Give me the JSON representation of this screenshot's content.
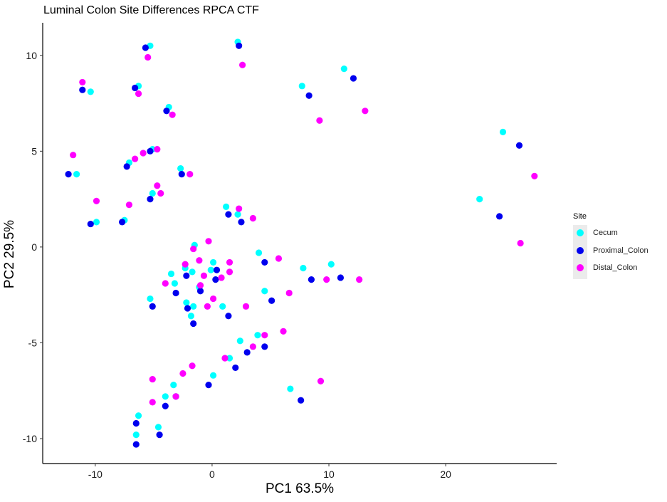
{
  "chart_data": {
    "type": "scatter",
    "title": "Luminal Colon Site Differences RPCA CTF",
    "xlabel": "PC1 63.5%",
    "ylabel": "PC2 29.5%",
    "xlim": [
      -14.5,
      29.5
    ],
    "ylim": [
      -11.3,
      11.7
    ],
    "xticks": [
      -10,
      0,
      10,
      20
    ],
    "yticks": [
      -10,
      -5,
      0,
      5,
      10
    ],
    "xtick_labels": [
      "-10",
      "0",
      "10",
      "20"
    ],
    "ytick_labels": [
      "-10",
      "-5",
      "0",
      "5",
      "10"
    ],
    "grid": false,
    "legend": {
      "title": "Site",
      "position": "right"
    },
    "series": [
      {
        "name": "Cecum",
        "color": "#00ffff",
        "points": [
          [
            -5.3,
            10.5
          ],
          [
            2.2,
            10.7
          ],
          [
            11.3,
            9.3
          ],
          [
            7.7,
            8.4
          ],
          [
            -10.4,
            8.1
          ],
          [
            -6.3,
            8.4
          ],
          [
            -3.7,
            7.3
          ],
          [
            24.9,
            6.0
          ],
          [
            -5.1,
            5.1
          ],
          [
            -7.1,
            4.4
          ],
          [
            -11.6,
            3.8
          ],
          [
            -2.7,
            4.1
          ],
          [
            -5.1,
            2.8
          ],
          [
            1.2,
            2.1
          ],
          [
            2.2,
            1.7
          ],
          [
            22.9,
            2.5
          ],
          [
            -7.5,
            1.4
          ],
          [
            -9.9,
            1.3
          ],
          [
            -1.5,
            0.1
          ],
          [
            0.1,
            -0.8
          ],
          [
            4.0,
            -0.3
          ],
          [
            10.2,
            -0.9
          ],
          [
            7.8,
            -1.1
          ],
          [
            -1.7,
            -1.3
          ],
          [
            -3.5,
            -1.4
          ],
          [
            -0.1,
            -1.2
          ],
          [
            -2.3,
            -1.1
          ],
          [
            -3.2,
            -1.9
          ],
          [
            -1.1,
            -2.1
          ],
          [
            4.5,
            -2.3
          ],
          [
            -5.3,
            -2.7
          ],
          [
            -2.2,
            -2.9
          ],
          [
            0.9,
            -3.1
          ],
          [
            -1.6,
            -3.1
          ],
          [
            -1.8,
            -3.6
          ],
          [
            2.4,
            -4.9
          ],
          [
            3.9,
            -4.6
          ],
          [
            1.5,
            -5.8
          ],
          [
            -3.3,
            -7.2
          ],
          [
            -4.0,
            -7.8
          ],
          [
            0.1,
            -6.7
          ],
          [
            6.7,
            -7.4
          ],
          [
            -6.3,
            -8.8
          ],
          [
            -4.6,
            -9.4
          ],
          [
            -6.5,
            -9.8
          ]
        ]
      },
      {
        "name": "Proximal_Colon",
        "color": "#0000ee",
        "points": [
          [
            -5.7,
            10.4
          ],
          [
            2.3,
            10.5
          ],
          [
            12.1,
            8.8
          ],
          [
            8.3,
            7.9
          ],
          [
            -11.1,
            8.2
          ],
          [
            -6.6,
            8.3
          ],
          [
            -3.9,
            7.1
          ],
          [
            26.3,
            5.3
          ],
          [
            -5.3,
            5.0
          ],
          [
            -7.3,
            4.2
          ],
          [
            -12.3,
            3.8
          ],
          [
            -2.6,
            3.8
          ],
          [
            -5.3,
            2.5
          ],
          [
            1.4,
            1.7
          ],
          [
            2.5,
            1.3
          ],
          [
            24.6,
            1.6
          ],
          [
            -7.7,
            1.3
          ],
          [
            -10.4,
            1.2
          ],
          [
            0.4,
            -1.2
          ],
          [
            4.5,
            -0.8
          ],
          [
            11.0,
            -1.6
          ],
          [
            8.5,
            -1.7
          ],
          [
            -2.2,
            -1.5
          ],
          [
            0.3,
            -1.7
          ],
          [
            -1.0,
            -2.3
          ],
          [
            -3.1,
            -2.4
          ],
          [
            5.1,
            -2.8
          ],
          [
            -5.1,
            -3.1
          ],
          [
            -2.1,
            -3.2
          ],
          [
            1.4,
            -3.6
          ],
          [
            -1.6,
            -4.0
          ],
          [
            3.0,
            -5.5
          ],
          [
            4.5,
            -5.2
          ],
          [
            2.0,
            -6.3
          ],
          [
            -3.1,
            -7.8
          ],
          [
            -4.0,
            -8.3
          ],
          [
            -0.3,
            -7.2
          ],
          [
            7.6,
            -8.0
          ],
          [
            -6.5,
            -9.2
          ],
          [
            -4.5,
            -9.8
          ],
          [
            -6.5,
            -10.3
          ]
        ]
      },
      {
        "name": "Distal_Colon",
        "color": "#ff00ff",
        "points": [
          [
            -5.5,
            9.9
          ],
          [
            2.6,
            9.5
          ],
          [
            13.1,
            7.1
          ],
          [
            9.2,
            6.6
          ],
          [
            -11.1,
            8.6
          ],
          [
            -6.3,
            8.0
          ],
          [
            -3.4,
            6.9
          ],
          [
            27.6,
            3.7
          ],
          [
            -4.7,
            5.1
          ],
          [
            -5.9,
            4.9
          ],
          [
            -6.6,
            4.6
          ],
          [
            -11.9,
            4.8
          ],
          [
            -1.9,
            3.8
          ],
          [
            -4.7,
            3.2
          ],
          [
            -4.4,
            2.8
          ],
          [
            -9.9,
            2.4
          ],
          [
            -7.1,
            2.2
          ],
          [
            2.3,
            2.0
          ],
          [
            3.5,
            1.5
          ],
          [
            26.4,
            0.2
          ],
          [
            -0.3,
            0.3
          ],
          [
            -1.6,
            -0.1
          ],
          [
            1.5,
            -0.8
          ],
          [
            5.7,
            -0.6
          ],
          [
            -1.1,
            -0.7
          ],
          [
            -2.3,
            -0.9
          ],
          [
            1.5,
            -1.3
          ],
          [
            9.8,
            -1.7
          ],
          [
            12.6,
            -1.7
          ],
          [
            -0.7,
            -1.5
          ],
          [
            -4.0,
            -1.9
          ],
          [
            0.8,
            -1.6
          ],
          [
            -1.0,
            -2.0
          ],
          [
            6.6,
            -2.4
          ],
          [
            0.1,
            -2.7
          ],
          [
            -0.4,
            -3.1
          ],
          [
            2.9,
            -3.1
          ],
          [
            6.1,
            -4.4
          ],
          [
            4.5,
            -4.6
          ],
          [
            3.5,
            -5.2
          ],
          [
            1.1,
            -5.8
          ],
          [
            -1.7,
            -6.2
          ],
          [
            -2.5,
            -6.6
          ],
          [
            -5.1,
            -6.9
          ],
          [
            9.3,
            -7.0
          ],
          [
            -3.1,
            -7.8
          ],
          [
            -5.1,
            -8.1
          ]
        ]
      }
    ]
  }
}
